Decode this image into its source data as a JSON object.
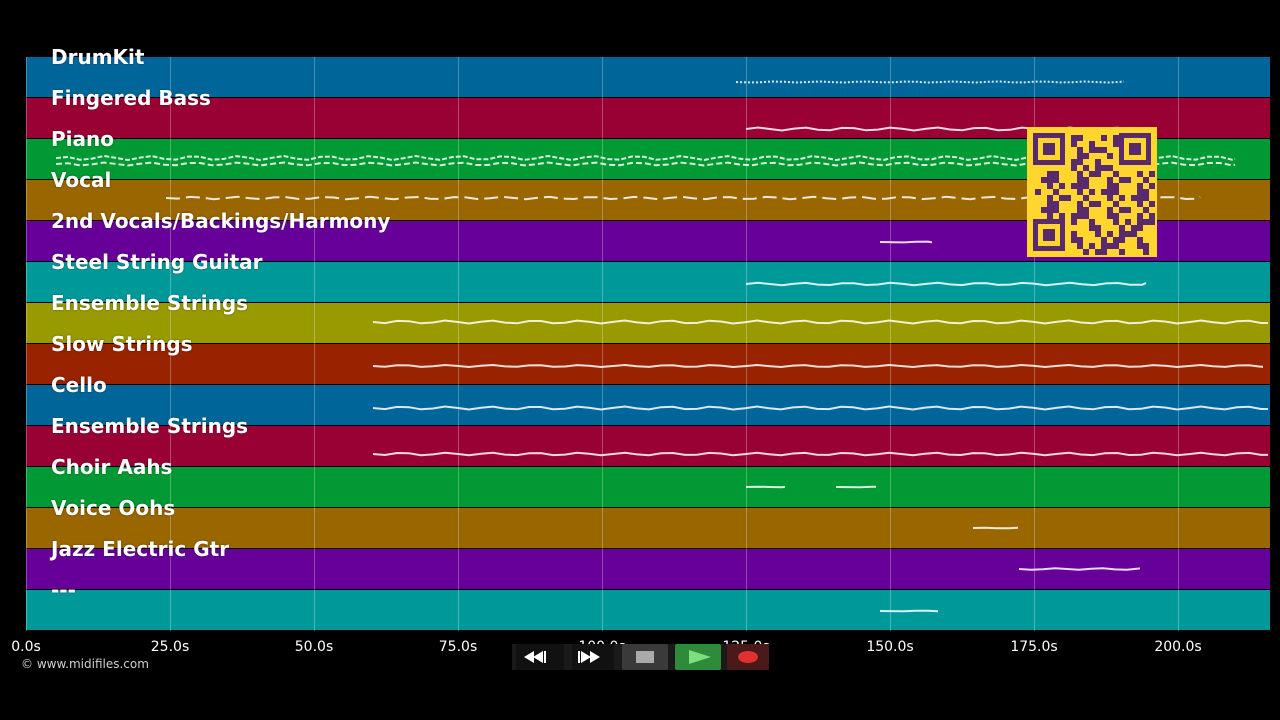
{
  "tracks": [
    {
      "name": "DrumKit",
      "color": "#006699"
    },
    {
      "name": "Fingered Bass",
      "color": "#990033"
    },
    {
      "name": "Piano",
      "color": "#009933"
    },
    {
      "name": "Vocal",
      "color": "#996600"
    },
    {
      "name": "2nd Vocals/Backings/Harmony",
      "color": "#660099"
    },
    {
      "name": "Steel String Guitar",
      "color": "#009999"
    },
    {
      "name": "Ensemble Strings",
      "color": "#999900"
    },
    {
      "name": "Slow Strings",
      "color": "#992200"
    },
    {
      "name": "Cello",
      "color": "#006699"
    },
    {
      "name": "Ensemble Strings",
      "color": "#990033"
    },
    {
      "name": "Choir Aahs",
      "color": "#009933"
    },
    {
      "name": "Voice Oohs",
      "color": "#996600"
    },
    {
      "name": "Jazz Electric Gtr",
      "color": "#660099"
    },
    {
      "name": "---",
      "color": "#009999"
    }
  ],
  "timeline": {
    "ticks": [
      "0.0s",
      "25.0s",
      "50.0s",
      "75.0s",
      "100.0s",
      "125.0s",
      "150.0s",
      "175.0s",
      "200.0s"
    ]
  },
  "copyright": "© www.midifiles.com",
  "transport": {
    "rewind_icon": "rewind-icon",
    "fast_forward_icon": "fast-forward-icon",
    "stop_icon": "stop-icon",
    "play_icon": "play-icon",
    "record_icon": "record-icon",
    "play_color": "#2e8b3a",
    "record_color": "#e03030"
  },
  "qr_code": {
    "icon": "qr-code-icon",
    "color": "#ffd62e",
    "ink": "#5a2a6e"
  }
}
